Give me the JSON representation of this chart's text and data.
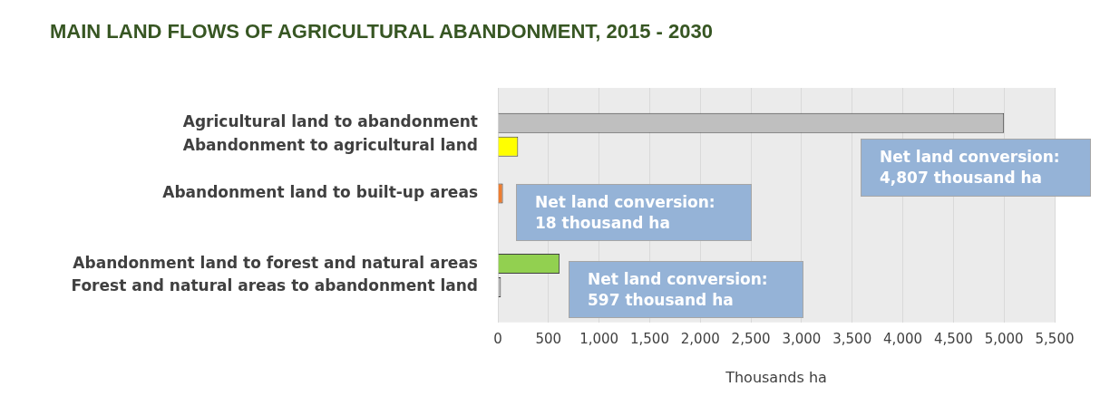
{
  "chart_data": {
    "type": "bar",
    "orientation": "horizontal",
    "title": "MAIN LAND FLOWS OF AGRICULTURAL ABANDONMENT, 2015 - 2030",
    "xlabel": "Thousands ha",
    "categories": [
      null,
      "Agricultural land to abandonment",
      "Abandonment to agricultural land",
      null,
      "Abandonment land to built-up areas",
      null,
      null,
      "Abandonment land to forest and natural areas",
      "Forest and natural areas to abandonment land",
      null
    ],
    "values": [
      null,
      5000,
      200,
      null,
      50,
      null,
      null,
      610,
      30,
      null
    ],
    "colors": [
      "#bfbfbf",
      "#bfbfbf",
      "#ffff00",
      "#bfbfbf",
      "#ed7d31",
      "#bfbfbf",
      "#bfbfbf",
      "#92d050",
      "#bfbfbf",
      "#bfbfbf"
    ],
    "xlim": [
      0,
      5500
    ],
    "xticks": [
      0,
      500,
      {
        "value": 1000,
        "label": "1,000"
      },
      {
        "value": 1500,
        "label": "1,500"
      },
      {
        "value": 2000,
        "label": "2,000"
      },
      {
        "value": 2500,
        "label": "2,500"
      },
      {
        "value": 3000,
        "label": "3,000"
      },
      {
        "value": 3500,
        "label": "3,500"
      },
      {
        "value": 4000,
        "label": "4,000"
      },
      {
        "value": 4500,
        "label": "4,500"
      },
      {
        "value": 5000,
        "label": "5,000"
      },
      {
        "value": 5500,
        "label": "5,500"
      }
    ],
    "grid": "x",
    "legend": false,
    "annotations": [
      "Net land conversion:\n4,807 thousand ha",
      "Net land conversion:\n18 thousand ha",
      "Net land conversion:\n597 thousand ha"
    ]
  }
}
